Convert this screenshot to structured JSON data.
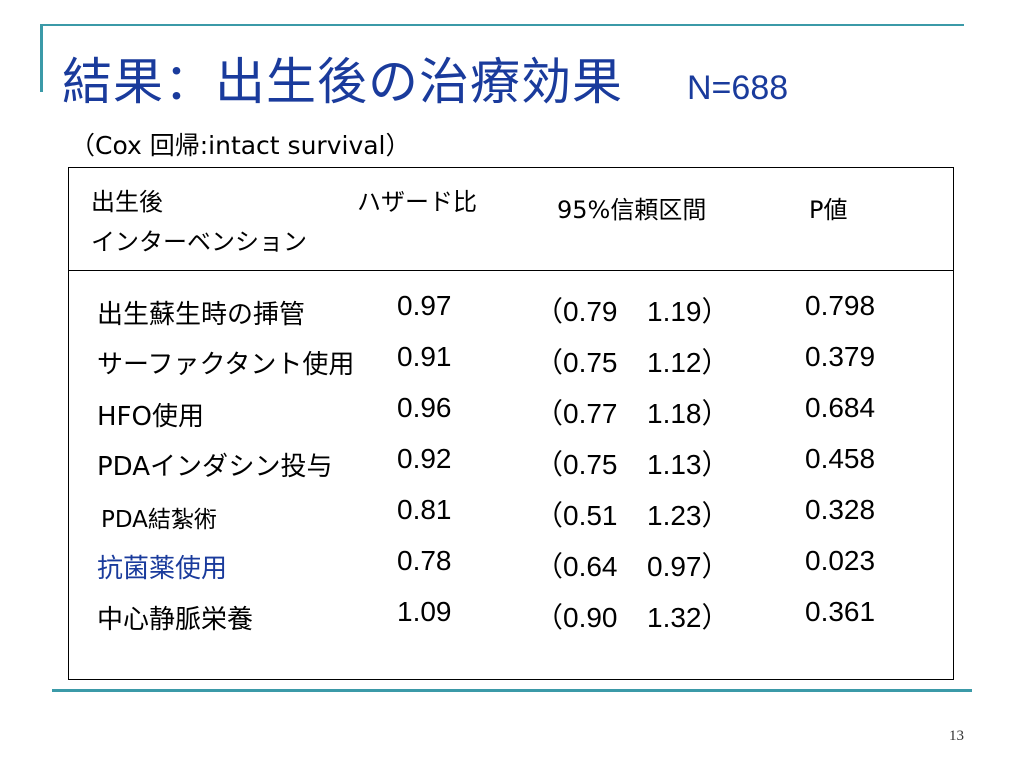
{
  "slide": {
    "title": "結果：出生後の治療効果",
    "n_label": "N=688",
    "subtitle": "（Cox 回帰:intact survival）",
    "page_number": "13"
  },
  "table": {
    "headers": {
      "intervention_line1": "出生後",
      "intervention_line2": "インターベンション",
      "hazard_ratio": "ハザード比",
      "ci": "95%信頼区間",
      "p_value": "P値"
    },
    "rows": [
      {
        "label": "出生蘇生時の挿管",
        "hr": "0.97",
        "ci_low": "（0.79",
        "ci_high": "1.19）",
        "p": "0.798"
      },
      {
        "label": "サーファクタント使用",
        "hr": "0.91",
        "ci_low": "（0.75",
        "ci_high": "1.12）",
        "p": "0.379"
      },
      {
        "label": "HFO使用",
        "hr": "0.96",
        "ci_low": "（0.77",
        "ci_high": "1.18）",
        "p": "0.684"
      },
      {
        "label": "PDAインダシン投与",
        "hr": "0.92",
        "ci_low": "（0.75",
        "ci_high": "1.13）",
        "p": "0.458"
      },
      {
        "label": "PDA結紮術",
        "hr": "0.81",
        "ci_low": "（0.51",
        "ci_high": "1.23）",
        "p": "0.328"
      },
      {
        "label": "抗菌薬使用",
        "hr": "0.78",
        "ci_low": "（0.64",
        "ci_high": "0.97）",
        "p": "0.023"
      },
      {
        "label": "中心静脈栄養",
        "hr": "1.09",
        "ci_low": "（0.90",
        "ci_high": "1.32）",
        "p": "0.361"
      }
    ]
  },
  "colors": {
    "title": "#1a3b9c",
    "accent_line": "#3b9aa8",
    "highlight_row": "#1a3b9c"
  }
}
